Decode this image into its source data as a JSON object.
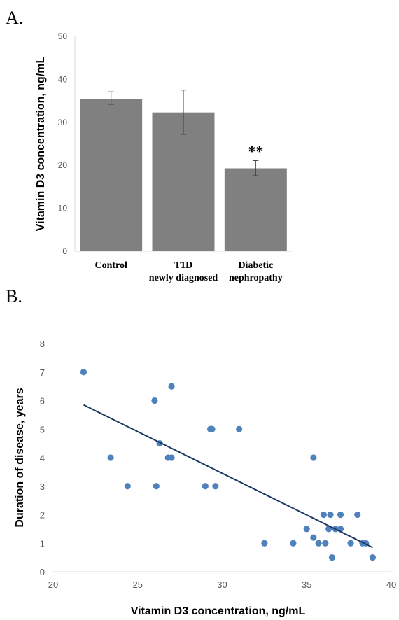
{
  "panel_a_label": "A.",
  "panel_b_label": "B.",
  "chart_data": [
    {
      "type": "bar",
      "title": "",
      "categories": [
        [
          "Control"
        ],
        [
          "T1D",
          "newly diagnosed"
        ],
        [
          "Diabetic",
          "nephropathy"
        ]
      ],
      "values": [
        35.5,
        32.3,
        19.3
      ],
      "error": [
        [
          34.2,
          37.1
        ],
        [
          27.2,
          37.5
        ],
        [
          17.6,
          21.1
        ]
      ],
      "annotations": [
        "",
        "",
        "**"
      ],
      "ylabel": "Vitamin D3 concentration, ng/mL",
      "ylim": [
        0,
        50
      ],
      "yticks": [
        0,
        10,
        20,
        30,
        40,
        50
      ],
      "bar_color": "#808080",
      "grid": false
    },
    {
      "type": "scatter",
      "title": "",
      "xlabel": "Vitamin D3 concentration, ng/mL",
      "ylabel": "Duration of disease, years",
      "xlim": [
        20,
        40
      ],
      "ylim": [
        0,
        8
      ],
      "xticks": [
        20,
        25,
        30,
        35,
        40
      ],
      "yticks": [
        0,
        1,
        2,
        3,
        4,
        5,
        6,
        7,
        8
      ],
      "point_color": "#4f81bd",
      "line_color": "#1f3864",
      "trendline": {
        "x": [
          21.8,
          38.9
        ],
        "y": [
          5.85,
          0.85
        ]
      },
      "points": [
        [
          21.8,
          7
        ],
        [
          23.4,
          4
        ],
        [
          24.4,
          3
        ],
        [
          26.0,
          6
        ],
        [
          26.1,
          3
        ],
        [
          26.3,
          4.5
        ],
        [
          26.8,
          4
        ],
        [
          27.0,
          4
        ],
        [
          27.0,
          6.5
        ],
        [
          29.0,
          3
        ],
        [
          29.3,
          5
        ],
        [
          29.4,
          5
        ],
        [
          29.6,
          3
        ],
        [
          31.0,
          5
        ],
        [
          32.5,
          1
        ],
        [
          34.2,
          1
        ],
        [
          35.0,
          1.5
        ],
        [
          35.4,
          1.2
        ],
        [
          35.4,
          4
        ],
        [
          35.7,
          1
        ],
        [
          36.0,
          2
        ],
        [
          36.1,
          1
        ],
        [
          36.3,
          1.5
        ],
        [
          36.4,
          2
        ],
        [
          36.5,
          0.5
        ],
        [
          36.7,
          1.5
        ],
        [
          37.0,
          2
        ],
        [
          37.0,
          1.5
        ],
        [
          37.6,
          1
        ],
        [
          38.0,
          2
        ],
        [
          38.3,
          1
        ],
        [
          38.5,
          1
        ],
        [
          38.9,
          0.5
        ]
      ],
      "grid": false
    }
  ]
}
